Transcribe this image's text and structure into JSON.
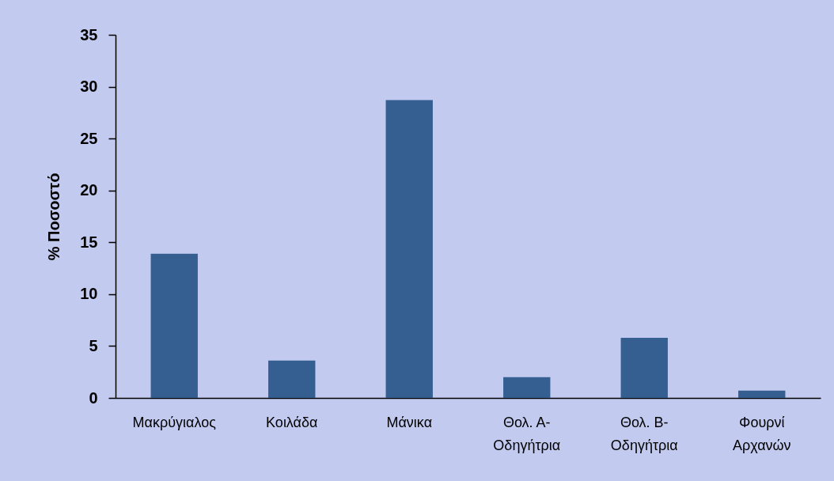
{
  "chart_data": {
    "type": "bar",
    "ylabel": "% Ποσοστό",
    "categories": [
      "Μακρύγιαλος",
      "Κοιλάδα",
      "Μάνικα",
      "Θολ. Α-Οδηγήτρια",
      "Θολ. Β-Οδηγήτρια",
      "Φουρνί Αρχανών"
    ],
    "values": [
      13.9,
      3.6,
      28.7,
      2.0,
      5.8,
      0.7
    ],
    "color": "#365f91",
    "ylim": [
      0,
      35
    ],
    "yticks": [
      0,
      5,
      10,
      15,
      20,
      25,
      30,
      35
    ]
  }
}
